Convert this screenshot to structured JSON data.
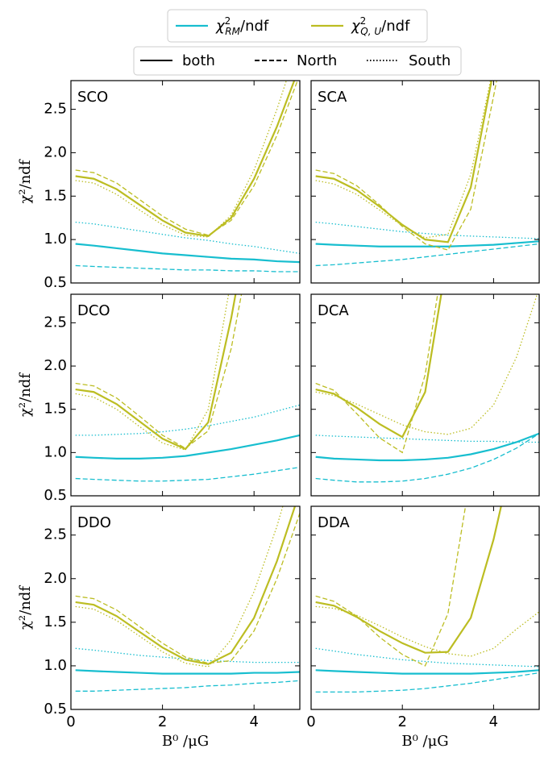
{
  "legend": {
    "colors": [
      {
        "symbol": "χ",
        "sup": "2",
        "sub": "RM",
        "suffix": "/ndf",
        "color": "#17becf"
      },
      {
        "symbol": "χ",
        "sup": "2",
        "sub": "Q, U",
        "suffix": "/ndf",
        "color": "#bcbd22"
      }
    ],
    "styles": [
      {
        "label": "both",
        "linestyle": "solid"
      },
      {
        "label": "North",
        "linestyle": "dashed"
      },
      {
        "label": "South",
        "linestyle": "dotted"
      }
    ]
  },
  "chart_data": [
    {
      "type": "line",
      "title": "SCO",
      "ylabel": "χ²/ndf",
      "xlim": [
        0,
        5
      ],
      "ylim": [
        0.5,
        2.83
      ],
      "xticks": [
        0,
        2,
        4
      ],
      "yticks": [
        0.5,
        {
          "value": 1,
          "label": "1.0"
        },
        1.5,
        {
          "value": 2,
          "label": "2.0"
        },
        2.5
      ],
      "x": [
        0.1,
        0.5,
        1,
        1.5,
        2,
        2.5,
        3,
        3.5,
        4,
        4.5,
        5
      ],
      "series": [
        {
          "color": "#17becf",
          "linestyle": "solid",
          "values": [
            0.95,
            0.93,
            0.9,
            0.87,
            0.84,
            0.82,
            0.8,
            0.78,
            0.77,
            0.75,
            0.74
          ]
        },
        {
          "color": "#17becf",
          "linestyle": "dashed",
          "values": [
            0.7,
            0.69,
            0.68,
            0.67,
            0.66,
            0.65,
            0.65,
            0.64,
            0.64,
            0.63,
            0.63
          ]
        },
        {
          "color": "#17becf",
          "linestyle": "dotted",
          "values": [
            1.2,
            1.18,
            1.14,
            1.1,
            1.06,
            1.02,
            0.99,
            0.95,
            0.92,
            0.88,
            0.84
          ]
        },
        {
          "color": "#bcbd22",
          "linestyle": "solid",
          "values": [
            1.73,
            1.7,
            1.58,
            1.4,
            1.22,
            1.08,
            1.04,
            1.25,
            1.7,
            2.3,
            3.0
          ]
        },
        {
          "color": "#bcbd22",
          "linestyle": "dashed",
          "values": [
            1.8,
            1.77,
            1.65,
            1.46,
            1.27,
            1.12,
            1.05,
            1.22,
            1.62,
            2.2,
            2.9
          ]
        },
        {
          "color": "#bcbd22",
          "linestyle": "dotted",
          "values": [
            1.68,
            1.65,
            1.52,
            1.34,
            1.17,
            1.05,
            1.03,
            1.28,
            1.8,
            2.5,
            3.3
          ]
        }
      ]
    },
    {
      "type": "line",
      "title": "SCA",
      "xlim": [
        0,
        5
      ],
      "ylim": [
        0.5,
        2.83
      ],
      "xticks": [
        0,
        2,
        4
      ],
      "yticks": [
        0.5,
        1,
        1.5,
        2,
        2.5
      ],
      "x": [
        0.1,
        0.5,
        1,
        1.5,
        2,
        2.5,
        3,
        3.5,
        4,
        4.5,
        5
      ],
      "series": [
        {
          "color": "#17becf",
          "linestyle": "solid",
          "values": [
            0.95,
            0.94,
            0.93,
            0.92,
            0.92,
            0.92,
            0.92,
            0.93,
            0.94,
            0.96,
            0.98
          ]
        },
        {
          "color": "#17becf",
          "linestyle": "dashed",
          "values": [
            0.7,
            0.71,
            0.73,
            0.75,
            0.77,
            0.8,
            0.83,
            0.86,
            0.89,
            0.92,
            0.95
          ]
        },
        {
          "color": "#17becf",
          "linestyle": "dotted",
          "values": [
            1.2,
            1.18,
            1.15,
            1.12,
            1.09,
            1.07,
            1.05,
            1.04,
            1.03,
            1.02,
            1.01
          ]
        },
        {
          "color": "#bcbd22",
          "linestyle": "solid",
          "values": [
            1.73,
            1.7,
            1.57,
            1.38,
            1.17,
            1.0,
            0.97,
            1.6,
            2.95,
            null,
            null
          ]
        },
        {
          "color": "#bcbd22",
          "linestyle": "dashed",
          "values": [
            1.8,
            1.76,
            1.62,
            1.4,
            1.15,
            0.95,
            0.88,
            1.35,
            2.65,
            4.0,
            null
          ]
        },
        {
          "color": "#bcbd22",
          "linestyle": "dotted",
          "values": [
            1.68,
            1.64,
            1.52,
            1.34,
            1.16,
            1.02,
            1.06,
            1.75,
            3.0,
            null,
            null
          ]
        }
      ]
    },
    {
      "type": "line",
      "title": "DCO",
      "ylabel": "χ²/ndf",
      "xlim": [
        0,
        5
      ],
      "ylim": [
        0.5,
        2.83
      ],
      "xticks": [
        0,
        2,
        4
      ],
      "yticks": [
        0.5,
        {
          "value": 1,
          "label": "1.0"
        },
        1.5,
        {
          "value": 2,
          "label": "2.0"
        },
        2.5
      ],
      "x": [
        0.1,
        0.5,
        1,
        1.5,
        2,
        2.5,
        3,
        3.5,
        4,
        4.5,
        5
      ],
      "series": [
        {
          "color": "#17becf",
          "linestyle": "solid",
          "values": [
            0.95,
            0.94,
            0.93,
            0.93,
            0.94,
            0.96,
            1.0,
            1.04,
            1.09,
            1.14,
            1.2
          ]
        },
        {
          "color": "#17becf",
          "linestyle": "dashed",
          "values": [
            0.7,
            0.69,
            0.68,
            0.67,
            0.67,
            0.68,
            0.69,
            0.72,
            0.75,
            0.79,
            0.83
          ]
        },
        {
          "color": "#17becf",
          "linestyle": "dotted",
          "values": [
            1.2,
            1.2,
            1.21,
            1.22,
            1.24,
            1.27,
            1.31,
            1.36,
            1.41,
            1.48,
            1.55
          ]
        },
        {
          "color": "#bcbd22",
          "linestyle": "solid",
          "values": [
            1.73,
            1.7,
            1.56,
            1.36,
            1.16,
            1.04,
            1.35,
            2.55,
            4.0,
            null,
            null
          ]
        },
        {
          "color": "#bcbd22",
          "linestyle": "dashed",
          "values": [
            1.8,
            1.77,
            1.63,
            1.42,
            1.2,
            1.05,
            1.25,
            2.2,
            3.6,
            null,
            null
          ]
        },
        {
          "color": "#bcbd22",
          "linestyle": "dotted",
          "values": [
            1.68,
            1.64,
            1.5,
            1.3,
            1.11,
            1.03,
            1.5,
            3.0,
            null,
            null,
            null
          ]
        }
      ]
    },
    {
      "type": "line",
      "title": "DCA",
      "xlim": [
        0,
        5
      ],
      "ylim": [
        0.5,
        2.83
      ],
      "xticks": [
        0,
        2,
        4
      ],
      "yticks": [
        0.5,
        1,
        1.5,
        2,
        2.5
      ],
      "x": [
        0.1,
        0.5,
        1,
        1.5,
        2,
        2.5,
        3,
        3.5,
        4,
        4.5,
        5
      ],
      "series": [
        {
          "color": "#17becf",
          "linestyle": "solid",
          "values": [
            0.95,
            0.93,
            0.92,
            0.91,
            0.91,
            0.92,
            0.94,
            0.98,
            1.04,
            1.12,
            1.22
          ]
        },
        {
          "color": "#17becf",
          "linestyle": "dashed",
          "values": [
            0.7,
            0.68,
            0.66,
            0.66,
            0.67,
            0.7,
            0.75,
            0.82,
            0.92,
            1.05,
            1.22
          ]
        },
        {
          "color": "#17becf",
          "linestyle": "dotted",
          "values": [
            1.2,
            1.19,
            1.18,
            1.17,
            1.16,
            1.15,
            1.14,
            1.13,
            1.13,
            1.12,
            1.12
          ]
        },
        {
          "color": "#bcbd22",
          "linestyle": "solid",
          "values": [
            1.73,
            1.68,
            1.52,
            1.33,
            1.18,
            1.7,
            3.3,
            null,
            null,
            null,
            null
          ]
        },
        {
          "color": "#bcbd22",
          "linestyle": "dashed",
          "values": [
            1.8,
            1.72,
            1.45,
            1.17,
            1.0,
            1.9,
            3.6,
            null,
            null,
            null,
            null
          ]
        },
        {
          "color": "#bcbd22",
          "linestyle": "dotted",
          "values": [
            1.7,
            1.66,
            1.56,
            1.44,
            1.32,
            1.24,
            1.21,
            1.28,
            1.55,
            2.1,
            2.9
          ]
        }
      ]
    },
    {
      "type": "line",
      "title": "DDO",
      "ylabel": "χ²/ndf",
      "xlabel": "B⁰ /μG",
      "xlim": [
        0,
        5
      ],
      "ylim": [
        0.5,
        2.83
      ],
      "xticks": [
        0,
        2,
        4
      ],
      "yticks": [
        0.5,
        {
          "value": 1,
          "label": "1.0"
        },
        1.5,
        {
          "value": 2,
          "label": "2.0"
        },
        2.5
      ],
      "x": [
        0.1,
        0.5,
        1,
        1.5,
        2,
        2.5,
        3,
        3.5,
        4,
        4.5,
        5
      ],
      "series": [
        {
          "color": "#17becf",
          "linestyle": "solid",
          "values": [
            0.95,
            0.94,
            0.93,
            0.92,
            0.91,
            0.91,
            0.91,
            0.91,
            0.92,
            0.92,
            0.93
          ]
        },
        {
          "color": "#17becf",
          "linestyle": "dashed",
          "values": [
            0.71,
            0.71,
            0.72,
            0.73,
            0.74,
            0.75,
            0.77,
            0.78,
            0.8,
            0.81,
            0.83
          ]
        },
        {
          "color": "#17becf",
          "linestyle": "dotted",
          "values": [
            1.2,
            1.18,
            1.15,
            1.12,
            1.1,
            1.08,
            1.06,
            1.05,
            1.04,
            1.04,
            1.04
          ]
        },
        {
          "color": "#bcbd22",
          "linestyle": "solid",
          "values": [
            1.73,
            1.7,
            1.57,
            1.39,
            1.21,
            1.07,
            1.02,
            1.15,
            1.55,
            2.2,
            3.0
          ]
        },
        {
          "color": "#bcbd22",
          "linestyle": "dashed",
          "values": [
            1.8,
            1.77,
            1.64,
            1.45,
            1.26,
            1.1,
            1.03,
            1.06,
            1.4,
            2.0,
            2.75
          ]
        },
        {
          "color": "#bcbd22",
          "linestyle": "dotted",
          "values": [
            1.68,
            1.65,
            1.52,
            1.34,
            1.16,
            1.03,
            0.99,
            1.3,
            1.85,
            2.6,
            3.5
          ]
        }
      ]
    },
    {
      "type": "line",
      "title": "DDA",
      "xlabel": "B⁰ /μG",
      "xlim": [
        0,
        5
      ],
      "ylim": [
        0.5,
        2.83
      ],
      "xticks": [
        0,
        2,
        4
      ],
      "yticks": [
        0.5,
        1,
        1.5,
        2,
        2.5
      ],
      "x": [
        0.1,
        0.5,
        1,
        1.5,
        2,
        2.5,
        3,
        3.5,
        4,
        4.5,
        5
      ],
      "series": [
        {
          "color": "#17becf",
          "linestyle": "solid",
          "values": [
            0.95,
            0.94,
            0.93,
            0.92,
            0.91,
            0.91,
            0.91,
            0.91,
            0.92,
            0.93,
            0.95
          ]
        },
        {
          "color": "#17becf",
          "linestyle": "dashed",
          "values": [
            0.7,
            0.7,
            0.7,
            0.71,
            0.72,
            0.74,
            0.77,
            0.8,
            0.84,
            0.88,
            0.92
          ]
        },
        {
          "color": "#17becf",
          "linestyle": "dotted",
          "values": [
            1.2,
            1.17,
            1.13,
            1.1,
            1.07,
            1.05,
            1.03,
            1.02,
            1.01,
            1.0,
            0.99
          ]
        },
        {
          "color": "#bcbd22",
          "linestyle": "solid",
          "values": [
            1.73,
            1.69,
            1.56,
            1.4,
            1.26,
            1.15,
            1.16,
            1.55,
            2.45,
            3.6,
            null
          ]
        },
        {
          "color": "#bcbd22",
          "linestyle": "dashed",
          "values": [
            1.8,
            1.74,
            1.57,
            1.33,
            1.13,
            1.0,
            1.6,
            3.2,
            null,
            null,
            null
          ]
        },
        {
          "color": "#bcbd22",
          "linestyle": "dotted",
          "values": [
            1.68,
            1.66,
            1.58,
            1.46,
            1.33,
            1.22,
            1.14,
            1.11,
            1.2,
            1.42,
            1.62
          ]
        }
      ]
    }
  ]
}
